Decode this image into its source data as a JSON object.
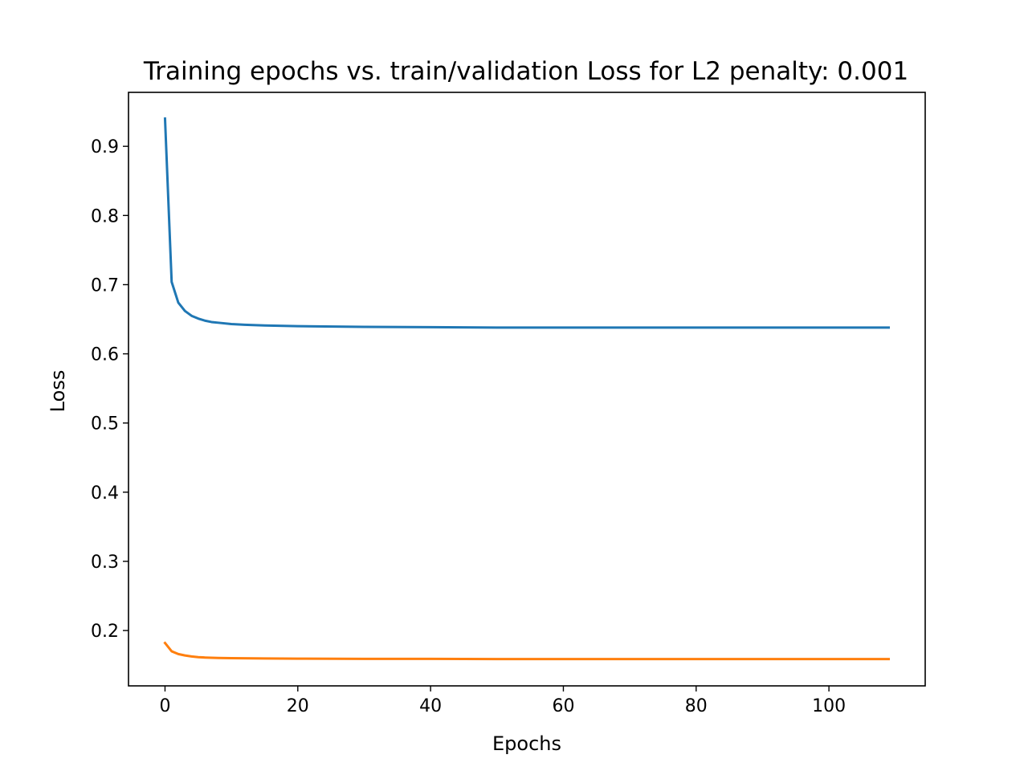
{
  "chart_data": {
    "type": "line",
    "title": "Training epochs vs. train/validation Loss for L2 penalty: 0.001",
    "xlabel": "Epochs",
    "ylabel": "Loss",
    "xlim": [
      -5.5,
      114.5
    ],
    "ylim": [
      0.12,
      0.978
    ],
    "grid": false,
    "legend": "none",
    "x_ticks": [
      0,
      20,
      40,
      60,
      80,
      100
    ],
    "x_tick_labels": [
      "0",
      "20",
      "40",
      "60",
      "80",
      "100"
    ],
    "y_ticks": [
      0.2,
      0.3,
      0.4,
      0.5,
      0.6,
      0.7,
      0.8,
      0.9
    ],
    "y_tick_labels": [
      "0.2",
      "0.3",
      "0.4",
      "0.5",
      "0.6",
      "0.7",
      "0.8",
      "0.9"
    ],
    "series": [
      {
        "color": "#1f77b4",
        "points": [
          [
            0,
            0.94
          ],
          [
            1,
            0.704
          ],
          [
            2,
            0.674
          ],
          [
            3,
            0.662
          ],
          [
            4,
            0.655
          ],
          [
            5,
            0.651
          ],
          [
            6,
            0.648
          ],
          [
            7,
            0.646
          ],
          [
            8,
            0.645
          ],
          [
            10,
            0.643
          ],
          [
            12,
            0.642
          ],
          [
            15,
            0.641
          ],
          [
            20,
            0.64
          ],
          [
            30,
            0.639
          ],
          [
            40,
            0.6385
          ],
          [
            50,
            0.638
          ],
          [
            60,
            0.638
          ],
          [
            70,
            0.638
          ],
          [
            80,
            0.638
          ],
          [
            90,
            0.638
          ],
          [
            100,
            0.638
          ],
          [
            109,
            0.638
          ]
        ]
      },
      {
        "color": "#ff7f0e",
        "points": [
          [
            0,
            0.182
          ],
          [
            1,
            0.17
          ],
          [
            2,
            0.166
          ],
          [
            3,
            0.164
          ],
          [
            4,
            0.1625
          ],
          [
            5,
            0.1615
          ],
          [
            6,
            0.161
          ],
          [
            8,
            0.1603
          ],
          [
            10,
            0.16
          ],
          [
            15,
            0.1596
          ],
          [
            20,
            0.1593
          ],
          [
            30,
            0.159
          ],
          [
            40,
            0.159
          ],
          [
            50,
            0.1588
          ],
          [
            60,
            0.1588
          ],
          [
            70,
            0.1587
          ],
          [
            80,
            0.1587
          ],
          [
            90,
            0.1587
          ],
          [
            100,
            0.1587
          ],
          [
            109,
            0.1587
          ]
        ]
      }
    ]
  }
}
